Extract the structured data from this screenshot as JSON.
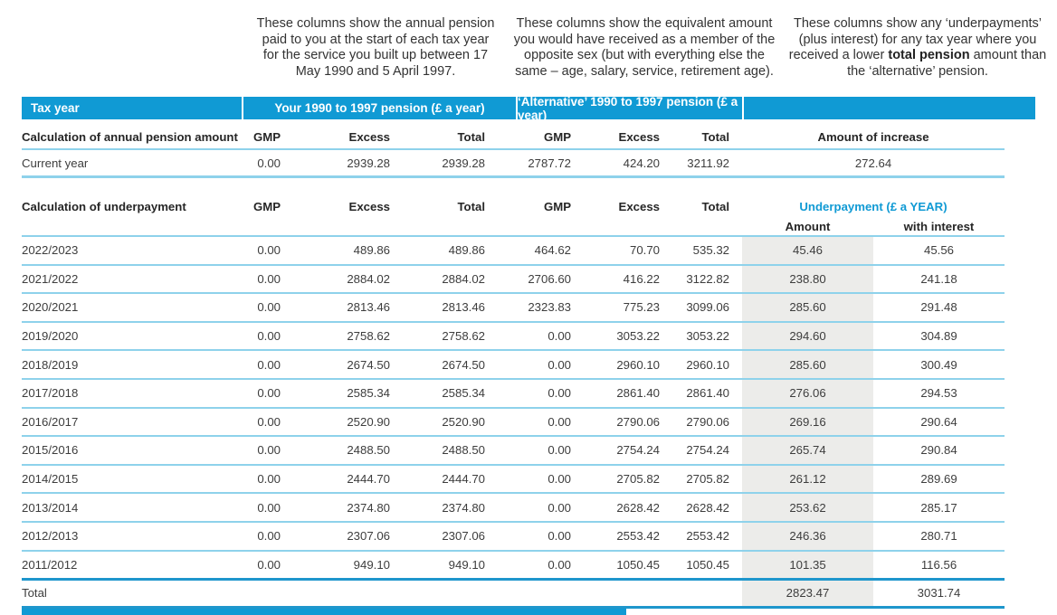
{
  "colors": {
    "header_blue": "#109AD4",
    "row_line_light": "#8ED2EB",
    "section_line_dark": "#1E96CC",
    "amount_column_bg": "#ECECEA",
    "underpayment_heading_blue": "#109AD4"
  },
  "notes": {
    "your_pension": "These columns show the annual pension paid to you at the start of each tax year for the service you built up between 17 May 1990 and 5 April 1997.",
    "alternative_pension": "These columns show the equivalent amount you would have received as a member of the opposite sex (but with everything else the same – age, salary, service, retirement age).",
    "underpayment_part1": "These columns show any ‘underpayments’ (plus interest) for any tax year where you received a lower ",
    "underpayment_bold": "total pension",
    "underpayment_part2": " amount than the ‘alternative’ pension."
  },
  "table_bar": {
    "tax_year": "Tax year",
    "your_pension": "Your 1990 to 1997 pension (£ a year)",
    "alternative_pension": "‘Alternative’ 1990 to 1997 pension (£ a year)"
  },
  "annual": {
    "label": "Calculation of annual pension amount",
    "headers": {
      "gmp1": "GMP",
      "excess1": "Excess",
      "total1": "Total",
      "gmp2": "GMP",
      "excess2": "Excess",
      "total2": "Total",
      "increase": "Amount of increase"
    },
    "current_year": {
      "label": "Current year",
      "gmp1": "0.00",
      "excess1": "2939.28",
      "total1": "2939.28",
      "gmp2": "2787.72",
      "excess2": "424.20",
      "total2": "3211.92",
      "increase": "272.64"
    }
  },
  "underpayment": {
    "label": "Calculation of underpayment",
    "headers": {
      "gmp1": "GMP",
      "excess1": "Excess",
      "total1": "Total",
      "gmp2": "GMP",
      "excess2": "Excess",
      "total2": "Total",
      "underpayment": "Underpayment (£ a YEAR)",
      "amount": "Amount",
      "interest": "with interest"
    },
    "rows": [
      {
        "label": "2022/2023",
        "gmp1": "0.00",
        "excess1": "489.86",
        "total1": "489.86",
        "gmp2": "464.62",
        "excess2": "70.70",
        "total2": "535.32",
        "amount": "45.46",
        "interest": "45.56"
      },
      {
        "label": "2021/2022",
        "gmp1": "0.00",
        "excess1": "2884.02",
        "total1": "2884.02",
        "gmp2": "2706.60",
        "excess2": "416.22",
        "total2": "3122.82",
        "amount": "238.80",
        "interest": "241.18"
      },
      {
        "label": "2020/2021",
        "gmp1": "0.00",
        "excess1": "2813.46",
        "total1": "2813.46",
        "gmp2": "2323.83",
        "excess2": "775.23",
        "total2": "3099.06",
        "amount": "285.60",
        "interest": "291.48"
      },
      {
        "label": "2019/2020",
        "gmp1": "0.00",
        "excess1": "2758.62",
        "total1": "2758.62",
        "gmp2": "0.00",
        "excess2": "3053.22",
        "total2": "3053.22",
        "amount": "294.60",
        "interest": "304.89"
      },
      {
        "label": "2018/2019",
        "gmp1": "0.00",
        "excess1": "2674.50",
        "total1": "2674.50",
        "gmp2": "0.00",
        "excess2": "2960.10",
        "total2": "2960.10",
        "amount": "285.60",
        "interest": "300.49"
      },
      {
        "label": "2017/2018",
        "gmp1": "0.00",
        "excess1": "2585.34",
        "total1": "2585.34",
        "gmp2": "0.00",
        "excess2": "2861.40",
        "total2": "2861.40",
        "amount": "276.06",
        "interest": "294.53"
      },
      {
        "label": "2016/2017",
        "gmp1": "0.00",
        "excess1": "2520.90",
        "total1": "2520.90",
        "gmp2": "0.00",
        "excess2": "2790.06",
        "total2": "2790.06",
        "amount": "269.16",
        "interest": "290.64"
      },
      {
        "label": "2015/2016",
        "gmp1": "0.00",
        "excess1": "2488.50",
        "total1": "2488.50",
        "gmp2": "0.00",
        "excess2": "2754.24",
        "total2": "2754.24",
        "amount": "265.74",
        "interest": "290.84"
      },
      {
        "label": "2014/2015",
        "gmp1": "0.00",
        "excess1": "2444.70",
        "total1": "2444.70",
        "gmp2": "0.00",
        "excess2": "2705.82",
        "total2": "2705.82",
        "amount": "261.12",
        "interest": "289.69"
      },
      {
        "label": "2013/2014",
        "gmp1": "0.00",
        "excess1": "2374.80",
        "total1": "2374.80",
        "gmp2": "0.00",
        "excess2": "2628.42",
        "total2": "2628.42",
        "amount": "253.62",
        "interest": "285.17"
      },
      {
        "label": "2012/2013",
        "gmp1": "0.00",
        "excess1": "2307.06",
        "total1": "2307.06",
        "gmp2": "0.00",
        "excess2": "2553.42",
        "total2": "2553.42",
        "amount": "246.36",
        "interest": "280.71"
      },
      {
        "label": "2011/2012",
        "gmp1": "0.00",
        "excess1": "949.10",
        "total1": "949.10",
        "gmp2": "0.00",
        "excess2": "1050.45",
        "total2": "1050.45",
        "amount": "101.35",
        "interest": "116.56"
      }
    ],
    "total": {
      "label": "Total",
      "amount": "2823.47",
      "interest": "3031.74"
    }
  }
}
